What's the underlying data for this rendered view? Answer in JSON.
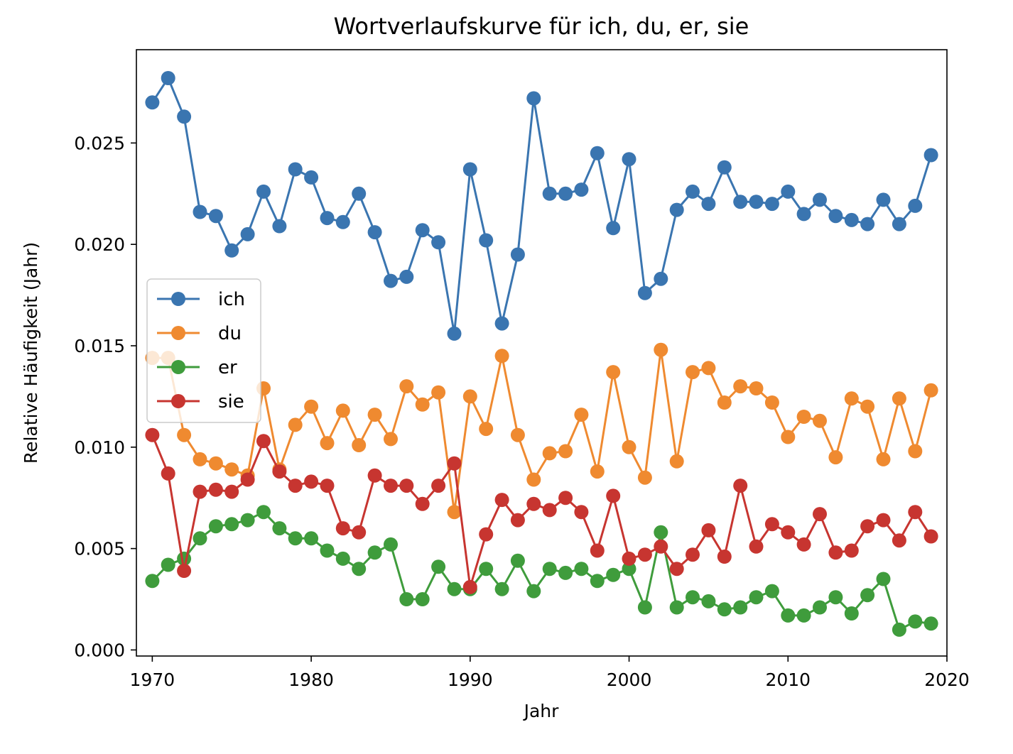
{
  "chart_data": {
    "type": "line",
    "title": "Wortverlaufskurve für ich, du, er, sie",
    "xlabel": "Jahr",
    "ylabel": "Relative Häufigkeit (Jahr)",
    "xlim": [
      1969,
      2020
    ],
    "ylim": [
      -0.0003,
      0.0296
    ],
    "xticks": [
      1970,
      1980,
      1990,
      2000,
      2010,
      2020
    ],
    "xtick_labels": [
      "1970",
      "1980",
      "1990",
      "2000",
      "2010",
      "2020"
    ],
    "yticks": [
      0.0,
      0.005,
      0.01,
      0.015,
      0.02,
      0.025
    ],
    "ytick_labels": [
      "0.000",
      "0.005",
      "0.010",
      "0.015",
      "0.020",
      "0.025"
    ],
    "grid": false,
    "legend_position": "center-left",
    "x": [
      1970,
      1971,
      1972,
      1973,
      1974,
      1975,
      1976,
      1977,
      1978,
      1979,
      1980,
      1981,
      1982,
      1983,
      1984,
      1985,
      1986,
      1987,
      1988,
      1989,
      1990,
      1991,
      1992,
      1993,
      1994,
      1995,
      1996,
      1997,
      1998,
      1999,
      2000,
      2001,
      2002,
      2003,
      2004,
      2005,
      2006,
      2007,
      2008,
      2009,
      2010,
      2011,
      2012,
      2013,
      2014,
      2015,
      2016,
      2017,
      2018,
      2019
    ],
    "series": [
      {
        "name": "ich",
        "color": "#3a75b0",
        "values": [
          0.027,
          0.0282,
          0.0263,
          0.0216,
          0.0214,
          0.0197,
          0.0205,
          0.0226,
          0.0209,
          0.0237,
          0.0233,
          0.0213,
          0.0211,
          0.0225,
          0.0206,
          0.0182,
          0.0184,
          0.0207,
          0.0201,
          0.0156,
          0.0237,
          0.0202,
          0.0161,
          0.0195,
          0.0272,
          0.0225,
          0.0225,
          0.0227,
          0.0245,
          0.0208,
          0.0242,
          0.0176,
          0.0183,
          0.0217,
          0.0226,
          0.022,
          0.0238,
          0.0221,
          0.0221,
          0.022,
          0.0226,
          0.0215,
          0.0222,
          0.0214,
          0.0212,
          0.021,
          0.0222,
          0.021,
          0.0219,
          0.0244
        ]
      },
      {
        "name": "du",
        "color": "#ef8a30",
        "values": [
          0.0144,
          0.0144,
          0.0106,
          0.0094,
          0.0092,
          0.0089,
          0.0086,
          0.0129,
          0.0089,
          0.0111,
          0.012,
          0.0102,
          0.0118,
          0.0101,
          0.0116,
          0.0104,
          0.013,
          0.0121,
          0.0127,
          0.0068,
          0.0125,
          0.0109,
          0.0145,
          0.0106,
          0.0084,
          0.0097,
          0.0098,
          0.0116,
          0.0088,
          0.0137,
          0.01,
          0.0085,
          0.0148,
          0.0093,
          0.0137,
          0.0139,
          0.0122,
          0.013,
          0.0129,
          0.0122,
          0.0105,
          0.0115,
          0.0113,
          0.0095,
          0.0124,
          0.012,
          0.0094,
          0.0124,
          0.0098,
          0.0128
        ]
      },
      {
        "name": "er",
        "color": "#3f9c3c",
        "values": [
          0.0034,
          0.0042,
          0.0045,
          0.0055,
          0.0061,
          0.0062,
          0.0064,
          0.0068,
          0.006,
          0.0055,
          0.0055,
          0.0049,
          0.0045,
          0.004,
          0.0048,
          0.0052,
          0.0025,
          0.0025,
          0.0041,
          0.003,
          0.003,
          0.004,
          0.003,
          0.0044,
          0.0029,
          0.004,
          0.0038,
          0.004,
          0.0034,
          0.0037,
          0.004,
          0.0021,
          0.0058,
          0.0021,
          0.0026,
          0.0024,
          0.002,
          0.0021,
          0.0026,
          0.0029,
          0.0017,
          0.0017,
          0.0021,
          0.0026,
          0.0018,
          0.0027,
          0.0035,
          0.001,
          0.0014,
          0.0013
        ]
      },
      {
        "name": "sie",
        "color": "#c73530",
        "values": [
          0.0106,
          0.0087,
          0.0039,
          0.0078,
          0.0079,
          0.0078,
          0.0084,
          0.0103,
          0.0088,
          0.0081,
          0.0083,
          0.0081,
          0.006,
          0.0058,
          0.0086,
          0.0081,
          0.0081,
          0.0072,
          0.0081,
          0.0092,
          0.0031,
          0.0057,
          0.0074,
          0.0064,
          0.0072,
          0.0069,
          0.0075,
          0.0068,
          0.0049,
          0.0076,
          0.0045,
          0.0047,
          0.0051,
          0.004,
          0.0047,
          0.0059,
          0.0046,
          0.0081,
          0.0051,
          0.0062,
          0.0058,
          0.0052,
          0.0067,
          0.0048,
          0.0049,
          0.0061,
          0.0064,
          0.0054,
          0.0068,
          0.0056
        ]
      }
    ]
  }
}
